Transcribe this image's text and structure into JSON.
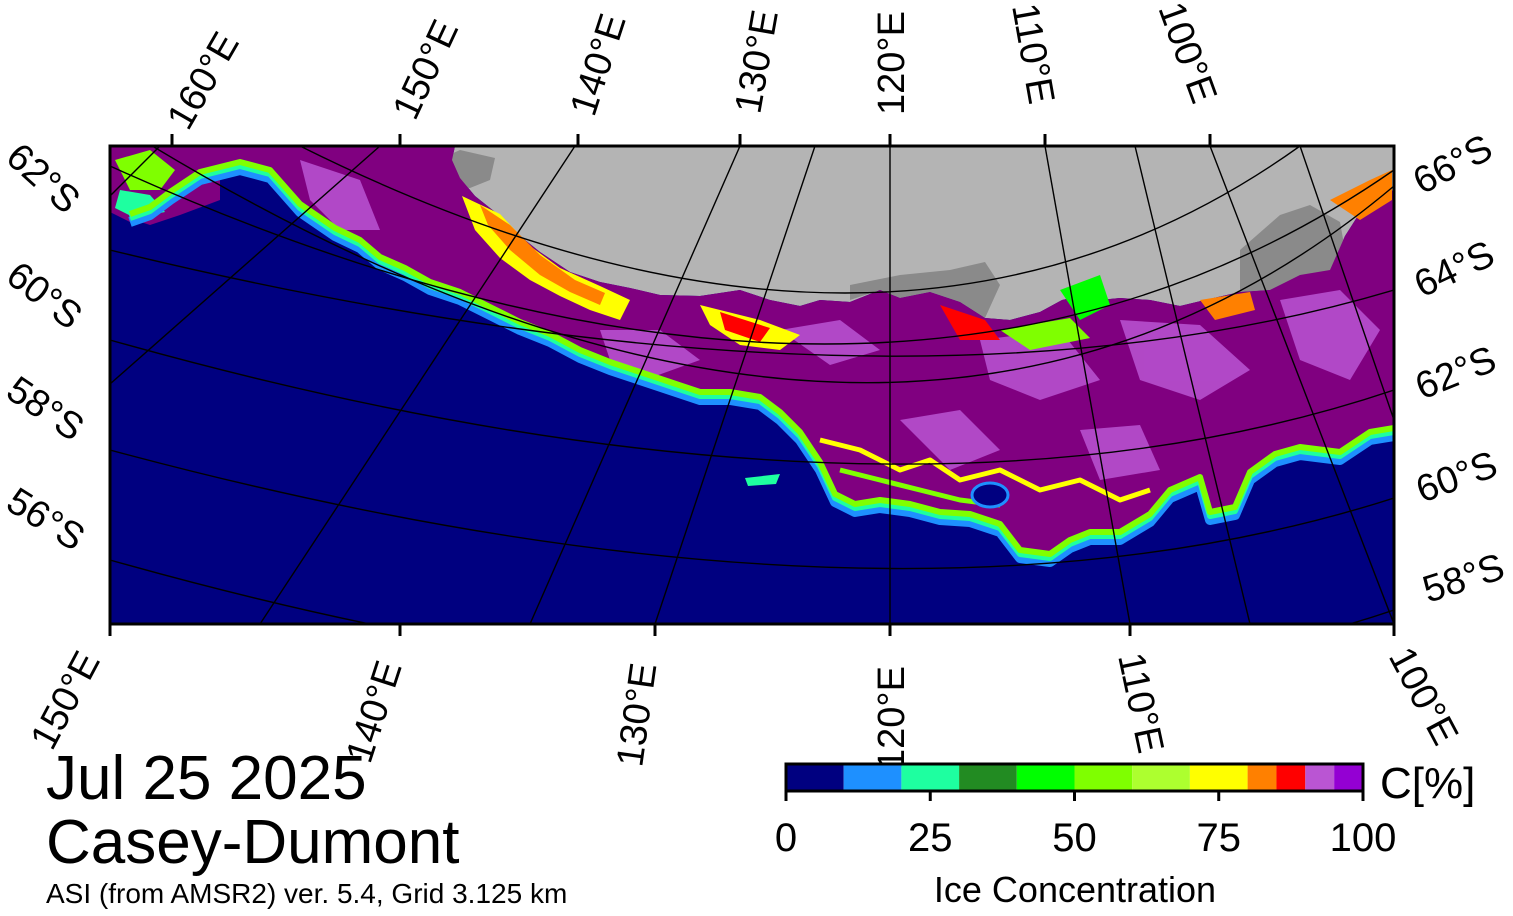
{
  "title": {
    "date": "Jul 25 2025",
    "region": "Casey-Dumont",
    "source_note": "ASI (from AMSR2) ver. 5.4,  Grid 3.125 km"
  },
  "map": {
    "top_longitude_labels": [
      "160°E",
      "150°E",
      "140°E",
      "130°E",
      "120°E",
      "110°E",
      "100°E"
    ],
    "bottom_longitude_labels": [
      "150°E",
      "140°E",
      "130°E",
      "120°E",
      "110°E",
      "100°E"
    ],
    "left_latitude_labels": [
      "62°S",
      "60°S",
      "58°S",
      "56°S"
    ],
    "right_latitude_labels": [
      "66°S",
      "64°S",
      "62°S",
      "60°S",
      "58°S"
    ],
    "colors": {
      "open_water": "#000080",
      "land": "#b4b4b4",
      "land_shadow": "#8a8a8a",
      "ice_high": "#800080"
    }
  },
  "legend": {
    "unit_label": "C[%]",
    "title": "Ice Concentration",
    "ticks": [
      "0",
      "25",
      "50",
      "75",
      "100"
    ],
    "tick_values": [
      0,
      25,
      50,
      75,
      100
    ],
    "range": [
      0,
      100
    ],
    "bins": [
      {
        "from": 0,
        "to": 10,
        "color": "#000080"
      },
      {
        "from": 10,
        "to": 20,
        "color": "#1e90ff"
      },
      {
        "from": 20,
        "to": 30,
        "color": "#1effa0"
      },
      {
        "from": 30,
        "to": 40,
        "color": "#228b22"
      },
      {
        "from": 40,
        "to": 50,
        "color": "#00ff00"
      },
      {
        "from": 50,
        "to": 60,
        "color": "#7fff00"
      },
      {
        "from": 60,
        "to": 70,
        "color": "#adff2f"
      },
      {
        "from": 70,
        "to": 80,
        "color": "#ffff00"
      },
      {
        "from": 80,
        "to": 85,
        "color": "#ff8000"
      },
      {
        "from": 85,
        "to": 90,
        "color": "#ff0000"
      },
      {
        "from": 90,
        "to": 95,
        "color": "#ba55d3"
      },
      {
        "from": 95,
        "to": 100,
        "color": "#9400d3"
      }
    ]
  }
}
